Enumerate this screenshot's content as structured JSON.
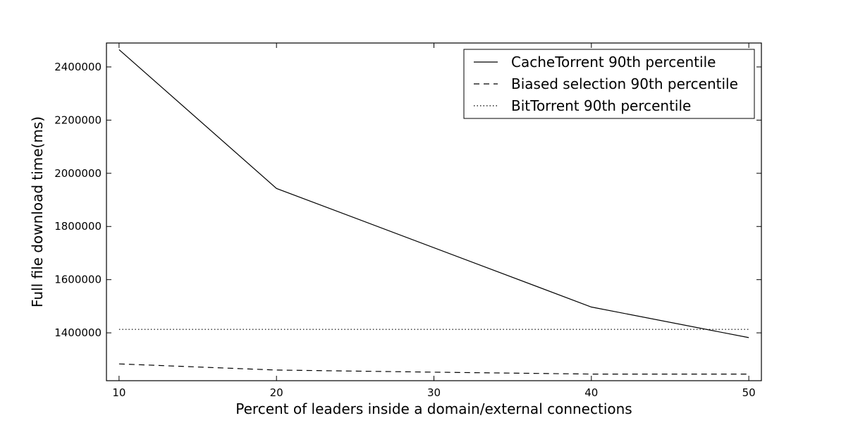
{
  "chart_data": {
    "type": "line",
    "xlabel": "Percent of leaders inside a domain/external connections",
    "ylabel": "Full file download time(ms)",
    "xlim": [
      9.2,
      50.8
    ],
    "ylim": [
      1220000,
      2490000
    ],
    "xticks": [
      10,
      20,
      30,
      40,
      50
    ],
    "yticks": [
      1400000,
      1600000,
      1800000,
      2000000,
      2200000,
      2400000
    ],
    "grid": false,
    "legend_position": "top-right",
    "series": [
      {
        "name": "CacheTorrent 90th percentile",
        "style": "solid",
        "x": [
          10,
          20,
          40,
          50
        ],
        "y": [
          2465000,
          1943000,
          1497000,
          1382000
        ]
      },
      {
        "name": "Biased selection 90th percentile",
        "style": "dashed",
        "x": [
          10,
          20,
          30,
          40,
          50
        ],
        "y": [
          1283000,
          1260000,
          1252000,
          1245000,
          1245000
        ]
      },
      {
        "name": "BitTorrent 90th percentile",
        "style": "dotted",
        "x": [
          10,
          50
        ],
        "y": [
          1413000,
          1413000
        ]
      }
    ]
  }
}
